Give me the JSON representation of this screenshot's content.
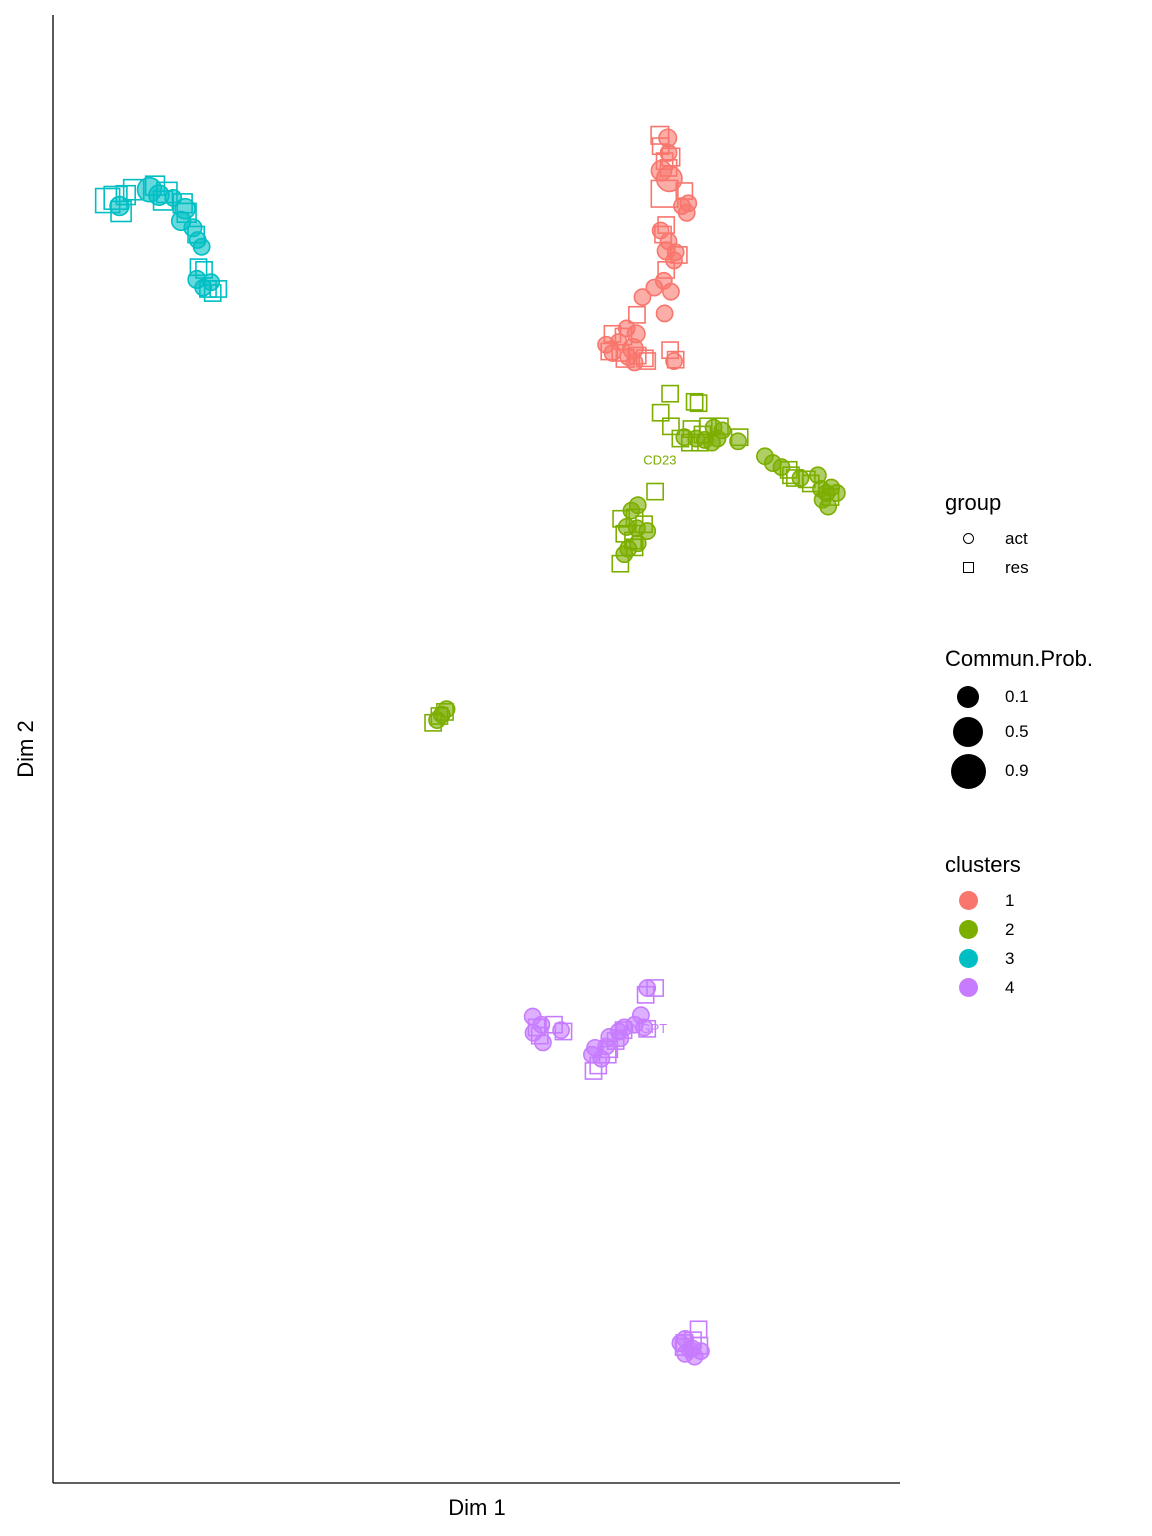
{
  "chart_data": {
    "type": "scatter",
    "title": "",
    "xlabel": "Dim 1",
    "ylabel": "Dim 2",
    "xlim": [
      0,
      100
    ],
    "ylim": [
      0,
      100
    ],
    "annotations": [
      {
        "text": "CD23",
        "x": 73.4,
        "y": 71.0,
        "color": "#7CAE00"
      },
      {
        "text": "ANGPT",
        "x": 71.5,
        "y": 29.2,
        "color": "#C77CFF"
      }
    ],
    "colors": {
      "1": "#F8766D",
      "2": "#7CAE00",
      "3": "#00BFC4",
      "4": "#C77CFF"
    },
    "points": [
      [
        1,
        "res",
        0.25,
        73.4,
        95.2
      ],
      [
        1,
        "act",
        0.25,
        74.4,
        95.0
      ],
      [
        1,
        "res",
        0.2,
        73.5,
        94.4
      ],
      [
        1,
        "act",
        0.2,
        74.5,
        93.9
      ],
      [
        1,
        "res",
        0.2,
        74.0,
        93.3
      ],
      [
        1,
        "res",
        0.25,
        74.8,
        93.6
      ],
      [
        1,
        "act",
        0.35,
        73.6,
        92.6
      ],
      [
        1,
        "res",
        0.2,
        74.5,
        92.8
      ],
      [
        1,
        "act",
        0.55,
        74.6,
        92.0
      ],
      [
        1,
        "res",
        0.6,
        74.0,
        90.9
      ],
      [
        1,
        "res",
        0.2,
        76.5,
        91.1
      ],
      [
        1,
        "act",
        0.2,
        77.0,
        90.2
      ],
      [
        1,
        "act",
        0.2,
        76.2,
        90.0
      ],
      [
        1,
        "act",
        0.2,
        76.8,
        89.5
      ],
      [
        1,
        "res",
        0.2,
        74.2,
        88.6
      ],
      [
        1,
        "act",
        0.2,
        73.5,
        88.2
      ],
      [
        1,
        "res",
        0.2,
        73.8,
        87.9
      ],
      [
        1,
        "act",
        0.2,
        74.5,
        87.4
      ],
      [
        1,
        "act",
        0.2,
        75.4,
        86.6
      ],
      [
        1,
        "res",
        0.2,
        75.8,
        86.4
      ],
      [
        1,
        "act",
        0.25,
        74.2,
        86.7
      ],
      [
        1,
        "act",
        0.2,
        75.2,
        86.0
      ],
      [
        1,
        "res",
        0.2,
        74.2,
        85.3
      ],
      [
        1,
        "act",
        0.2,
        73.9,
        84.5
      ],
      [
        1,
        "act",
        0.2,
        72.7,
        84.0
      ],
      [
        1,
        "act",
        0.2,
        74.8,
        83.7
      ],
      [
        1,
        "act",
        0.2,
        71.2,
        83.3
      ],
      [
        1,
        "act",
        0.2,
        74.0,
        82.1
      ],
      [
        1,
        "res",
        0.2,
        70.5,
        82.0
      ],
      [
        1,
        "act",
        0.2,
        69.2,
        81.0
      ],
      [
        1,
        "act",
        0.25,
        70.4,
        80.6
      ],
      [
        1,
        "res",
        0.2,
        68.8,
        80.4
      ],
      [
        1,
        "res",
        0.2,
        67.4,
        80.6
      ],
      [
        1,
        "act",
        0.2,
        66.6,
        79.8
      ],
      [
        1,
        "res",
        0.2,
        67.0,
        79.3
      ],
      [
        1,
        "act",
        0.2,
        68.2,
        80.0
      ],
      [
        1,
        "act",
        0.2,
        67.4,
        79.2
      ],
      [
        1,
        "res",
        0.2,
        68.4,
        79.2
      ],
      [
        1,
        "res",
        0.25,
        69.0,
        78.8
      ],
      [
        1,
        "act",
        0.35,
        70.0,
        79.5
      ],
      [
        1,
        "res",
        0.2,
        70.6,
        79.0
      ],
      [
        1,
        "act",
        0.2,
        70.2,
        78.5
      ],
      [
        1,
        "res",
        0.2,
        71.5,
        78.8
      ],
      [
        1,
        "res",
        0.2,
        74.7,
        79.4
      ],
      [
        1,
        "act",
        0.2,
        75.2,
        78.6
      ],
      [
        1,
        "res",
        0.2,
        75.4,
        78.7
      ],
      [
        1,
        "res",
        0.2,
        71.8,
        78.6
      ],
      [
        1,
        "act",
        0.2,
        69.4,
        78.9
      ],
      [
        2,
        "res",
        0.2,
        74.7,
        76.2
      ],
      [
        2,
        "res",
        0.2,
        77.8,
        75.6
      ],
      [
        2,
        "res",
        0.2,
        78.3,
        75.5
      ],
      [
        2,
        "res",
        0.2,
        73.5,
        74.8
      ],
      [
        2,
        "res",
        0.2,
        74.8,
        73.8
      ],
      [
        2,
        "res",
        0.2,
        77.4,
        73.6
      ],
      [
        2,
        "res",
        0.2,
        79.5,
        73.8
      ],
      [
        2,
        "act",
        0.2,
        80.2,
        73.7
      ],
      [
        2,
        "res",
        0.2,
        81.0,
        73.8
      ],
      [
        2,
        "act",
        0.2,
        81.3,
        73.5
      ],
      [
        2,
        "res",
        0.2,
        78.8,
        73.2
      ],
      [
        2,
        "act",
        0.2,
        79.1,
        72.8
      ],
      [
        2,
        "res",
        0.2,
        76.0,
        72.9
      ],
      [
        2,
        "act",
        0.2,
        76.5,
        73.0
      ],
      [
        2,
        "res",
        0.2,
        77.2,
        72.6
      ],
      [
        2,
        "act",
        0.2,
        78.0,
        72.9
      ],
      [
        2,
        "res",
        0.2,
        78.5,
        72.6
      ],
      [
        2,
        "act",
        0.2,
        80.0,
        72.6
      ],
      [
        2,
        "act",
        0.2,
        80.7,
        72.9
      ],
      [
        2,
        "res",
        0.2,
        83.5,
        73.0
      ],
      [
        2,
        "act",
        0.2,
        83.3,
        72.7
      ],
      [
        2,
        "act",
        0.2,
        86.7,
        71.6
      ],
      [
        2,
        "act",
        0.2,
        87.7,
        71.1
      ],
      [
        2,
        "act",
        0.2,
        88.8,
        70.8
      ],
      [
        2,
        "res",
        0.2,
        89.7,
        70.6
      ],
      [
        2,
        "res",
        0.2,
        90.5,
        70.0
      ],
      [
        2,
        "res",
        0.2,
        90.0,
        70.2
      ],
      [
        2,
        "act",
        0.2,
        91.2,
        70.0
      ],
      [
        2,
        "res",
        0.2,
        92.0,
        69.9
      ],
      [
        2,
        "act",
        0.2,
        93.4,
        70.2
      ],
      [
        2,
        "res",
        0.2,
        92.5,
        69.6
      ],
      [
        2,
        "act",
        0.2,
        93.8,
        69.2
      ],
      [
        2,
        "act",
        0.2,
        94.5,
        68.9
      ],
      [
        2,
        "act",
        0.2,
        95.1,
        69.3
      ],
      [
        2,
        "act",
        0.2,
        95.8,
        68.9
      ],
      [
        2,
        "res",
        0.2,
        95.0,
        68.6
      ],
      [
        2,
        "act",
        0.2,
        94.0,
        68.4
      ],
      [
        2,
        "act",
        0.2,
        94.7,
        67.9
      ],
      [
        2,
        "res",
        0.2,
        72.8,
        69.0
      ],
      [
        2,
        "act",
        0.2,
        70.6,
        68.0
      ],
      [
        2,
        "res",
        0.2,
        70.2,
        67.1
      ],
      [
        2,
        "act",
        0.2,
        69.8,
        67.6
      ],
      [
        2,
        "res",
        0.2,
        68.5,
        67.0
      ],
      [
        2,
        "act",
        0.2,
        69.2,
        66.4
      ],
      [
        2,
        "res",
        0.2,
        68.9,
        65.9
      ],
      [
        2,
        "act",
        0.2,
        70.5,
        66.3
      ],
      [
        2,
        "res",
        0.2,
        71.4,
        66.6
      ],
      [
        2,
        "act",
        0.2,
        71.8,
        66.1
      ],
      [
        2,
        "res",
        0.2,
        70.0,
        65.4
      ],
      [
        2,
        "act",
        0.2,
        69.4,
        64.8
      ],
      [
        2,
        "act",
        0.2,
        68.9,
        64.4
      ],
      [
        2,
        "res",
        0.2,
        68.4,
        63.7
      ],
      [
        2,
        "act",
        0.2,
        70.6,
        65.2
      ],
      [
        2,
        "res",
        0.2,
        70.2,
        64.9
      ],
      [
        2,
        "res",
        0.2,
        44.7,
        52.0
      ],
      [
        2,
        "act",
        0.2,
        45.2,
        52.2
      ],
      [
        2,
        "act",
        0.2,
        45.8,
        52.6
      ],
      [
        2,
        "res",
        0.2,
        46.2,
        52.8
      ],
      [
        2,
        "act",
        0.2,
        46.4,
        53.0
      ],
      [
        2,
        "res",
        0.2,
        45.5,
        52.5
      ],
      [
        3,
        "res",
        0.5,
        3.5,
        90.4
      ],
      [
        3,
        "res",
        0.45,
        4.5,
        90.6
      ],
      [
        3,
        "act",
        0.3,
        5.0,
        90.0
      ],
      [
        3,
        "res",
        0.3,
        5.8,
        90.8
      ],
      [
        3,
        "res",
        0.35,
        5.2,
        89.6
      ],
      [
        3,
        "res",
        0.35,
        6.8,
        91.2
      ],
      [
        3,
        "act",
        0.5,
        8.8,
        91.2
      ],
      [
        3,
        "res",
        0.3,
        9.5,
        91.5
      ],
      [
        3,
        "act",
        0.35,
        10.0,
        90.8
      ],
      [
        3,
        "res",
        0.35,
        11.0,
        91.0
      ],
      [
        3,
        "res",
        0.3,
        10.5,
        90.4
      ],
      [
        3,
        "act",
        0.2,
        11.8,
        90.6
      ],
      [
        3,
        "res",
        0.3,
        13.0,
        90.2
      ],
      [
        3,
        "act",
        0.35,
        13.3,
        89.8
      ],
      [
        3,
        "res",
        0.3,
        13.5,
        89.5
      ],
      [
        3,
        "act",
        0.3,
        12.8,
        88.9
      ],
      [
        3,
        "act",
        0.25,
        14.3,
        88.4
      ],
      [
        3,
        "res",
        0.2,
        14.7,
        87.9
      ],
      [
        3,
        "act",
        0.2,
        14.9,
        87.5
      ],
      [
        3,
        "act",
        0.2,
        15.4,
        87.0
      ],
      [
        3,
        "res",
        0.2,
        15.0,
        85.5
      ],
      [
        3,
        "res",
        0.2,
        15.7,
        85.3
      ],
      [
        3,
        "act",
        0.25,
        14.8,
        84.6
      ],
      [
        3,
        "act",
        0.2,
        16.6,
        84.4
      ],
      [
        3,
        "res",
        0.2,
        16.2,
        83.9
      ],
      [
        3,
        "res",
        0.2,
        17.5,
        83.9
      ],
      [
        3,
        "res",
        0.2,
        16.8,
        83.6
      ],
      [
        3,
        "act",
        0.2,
        15.6,
        84.0
      ],
      [
        4,
        "act",
        0.2,
        71.8,
        32.5
      ],
      [
        4,
        "res",
        0.2,
        72.8,
        32.5
      ],
      [
        4,
        "res",
        0.2,
        71.6,
        32.0
      ],
      [
        4,
        "act",
        0.2,
        71.0,
        30.5
      ],
      [
        4,
        "act",
        0.2,
        70.2,
        29.8
      ],
      [
        4,
        "act",
        0.2,
        68.9,
        29.6
      ],
      [
        4,
        "res",
        0.2,
        71.8,
        29.5
      ],
      [
        4,
        "act",
        0.2,
        68.2,
        29.3
      ],
      [
        4,
        "act",
        0.2,
        71.4,
        29.6
      ],
      [
        4,
        "res",
        0.2,
        68.8,
        29.4
      ],
      [
        4,
        "act",
        0.2,
        67.0,
        28.9
      ],
      [
        4,
        "act",
        0.2,
        68.4,
        28.8
      ],
      [
        4,
        "res",
        0.2,
        67.8,
        28.6
      ],
      [
        4,
        "act",
        0.2,
        66.6,
        28.2
      ],
      [
        4,
        "res",
        0.2,
        67.0,
        28.0
      ],
      [
        4,
        "act",
        0.2,
        65.2,
        28.1
      ],
      [
        4,
        "res",
        0.2,
        66.8,
        27.6
      ],
      [
        4,
        "act",
        0.2,
        66.0,
        27.3
      ],
      [
        4,
        "res",
        0.2,
        65.6,
        26.8
      ],
      [
        4,
        "act",
        0.2,
        64.8,
        27.6
      ],
      [
        4,
        "res",
        0.2,
        65.0,
        26.4
      ],
      [
        4,
        "act",
        0.2,
        57.3,
        30.4
      ],
      [
        4,
        "act",
        0.2,
        58.4,
        29.8
      ],
      [
        4,
        "res",
        0.2,
        57.8,
        29.6
      ],
      [
        4,
        "act",
        0.2,
        57.4,
        29.2
      ],
      [
        4,
        "res",
        0.2,
        60.0,
        29.8
      ],
      [
        4,
        "act",
        0.2,
        60.9,
        29.4
      ],
      [
        4,
        "res",
        0.2,
        61.2,
        29.3
      ],
      [
        4,
        "res",
        0.2,
        58.2,
        29.0
      ],
      [
        4,
        "act",
        0.2,
        58.6,
        28.5
      ],
      [
        4,
        "res",
        0.2,
        78.3,
        7.4
      ],
      [
        4,
        "res",
        0.2,
        77.6,
        6.6
      ],
      [
        4,
        "act",
        0.2,
        76.6,
        6.7
      ],
      [
        4,
        "act",
        0.2,
        76.0,
        6.4
      ],
      [
        4,
        "res",
        0.2,
        76.4,
        6.1
      ],
      [
        4,
        "act",
        0.2,
        77.5,
        6.0
      ],
      [
        4,
        "res",
        0.2,
        78.4,
        6.2
      ],
      [
        4,
        "act",
        0.2,
        78.6,
        5.8
      ],
      [
        4,
        "act",
        0.2,
        77.8,
        5.4
      ],
      [
        4,
        "act",
        0.2,
        76.6,
        5.6
      ],
      [
        4,
        "res",
        0.2,
        76.5,
        6.4
      ],
      [
        4,
        "act",
        0.2,
        77.2,
        5.9
      ]
    ]
  },
  "legend": {
    "group": {
      "title": "group",
      "items": [
        {
          "label": "act",
          "shape": "circle"
        },
        {
          "label": "res",
          "shape": "square"
        }
      ]
    },
    "prob": {
      "title": "Commun.Prob.",
      "items": [
        {
          "label": "0.1",
          "value": 0.1
        },
        {
          "label": "0.5",
          "value": 0.5
        },
        {
          "label": "0.9",
          "value": 0.9
        }
      ]
    },
    "clusters": {
      "title": "clusters",
      "items": [
        {
          "label": "1",
          "color": "#F8766D"
        },
        {
          "label": "2",
          "color": "#7CAE00"
        },
        {
          "label": "3",
          "color": "#00BFC4"
        },
        {
          "label": "4",
          "color": "#C77CFF"
        }
      ]
    }
  }
}
